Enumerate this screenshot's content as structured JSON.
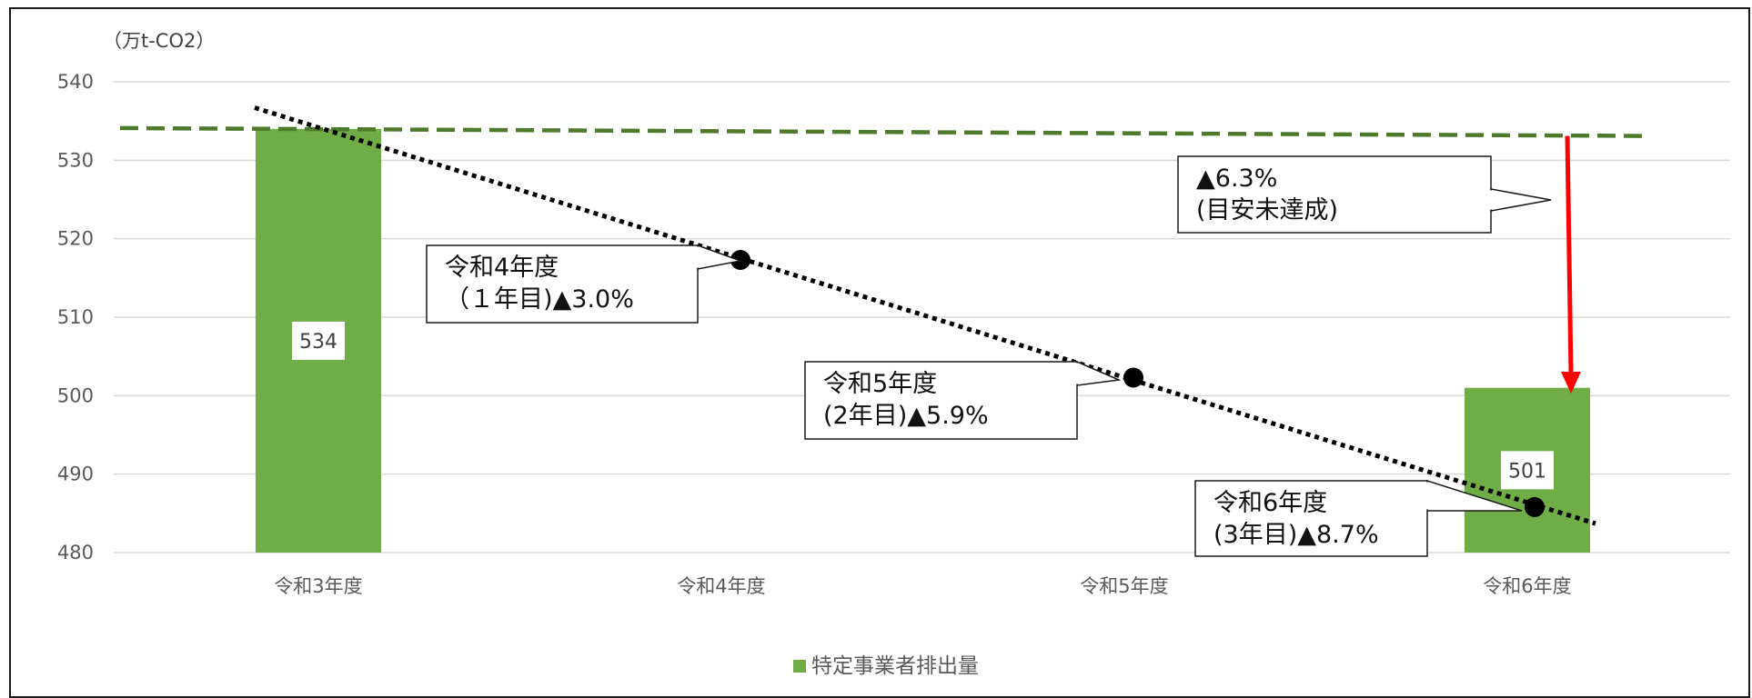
{
  "chart_data": {
    "type": "bar",
    "unit_label": "（万t-CO2）",
    "categories": [
      "令和3年度",
      "令和4年度",
      "令和5年度",
      "令和6年度"
    ],
    "series": [
      {
        "name": "特定事業者排出量",
        "values": [
          534,
          null,
          null,
          501
        ],
        "data_labels": [
          "534",
          "",
          "",
          "501"
        ],
        "color": "#70ad47"
      }
    ],
    "yticks": [
      "540",
      "530",
      "520",
      "510",
      "500",
      "490",
      "480"
    ],
    "ylim": [
      480,
      540
    ],
    "target_line": {
      "start": 534.1,
      "end": 533.1,
      "color": "#4e7a2b",
      "style": "dashed"
    },
    "trend_line": {
      "start": 536.7,
      "end": 483.7,
      "color": "#000000",
      "style": "dotted"
    },
    "trend_points": [
      {
        "x": 1,
        "y": 517.3
      },
      {
        "x": 2,
        "y": 502.3
      },
      {
        "x": 3,
        "y": 485.8
      }
    ],
    "gap_arrow": {
      "from": 533.1,
      "to": 500.5,
      "color": "#ff0000"
    },
    "annotations": [
      {
        "line1": "令和4年度",
        "line2": "（１年目)▲3.0%"
      },
      {
        "line1": "令和5年度",
        "line2": "(2年目)▲5.9%"
      },
      {
        "line1": "令和6年度",
        "line2": "(3年目)▲8.7%"
      },
      {
        "line1": "▲6.3%",
        "line2": "(目安未達成)"
      }
    ],
    "grid": true,
    "legend_position": "bottom"
  }
}
